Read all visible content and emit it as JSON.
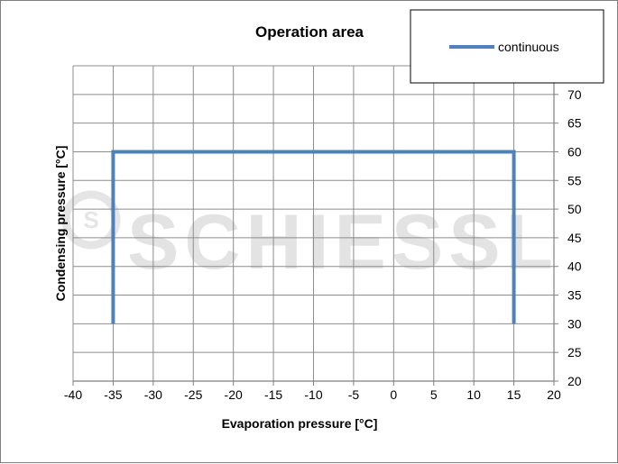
{
  "chart_data": {
    "type": "line",
    "title": "Operation area",
    "xlabel": "Evaporation pressure [°C]",
    "ylabel": "Condensing pressure [°C]",
    "xlim": [
      -40,
      20
    ],
    "ylim": [
      20,
      75
    ],
    "xticks": [
      -40,
      -35,
      -30,
      -25,
      -20,
      -15,
      -10,
      -5,
      0,
      5,
      10,
      15,
      20
    ],
    "yticks": [
      20,
      25,
      30,
      35,
      40,
      45,
      50,
      55,
      60,
      65,
      70
    ],
    "grid": true,
    "legend": "top-right",
    "series": [
      {
        "name": "continuous",
        "color": "#4f81bd",
        "x": [
          -35,
          -35,
          15,
          15
        ],
        "y": [
          30,
          60,
          60,
          30
        ]
      }
    ]
  },
  "watermark": {
    "text": "SCHIESSL",
    "logo_text": "S"
  }
}
